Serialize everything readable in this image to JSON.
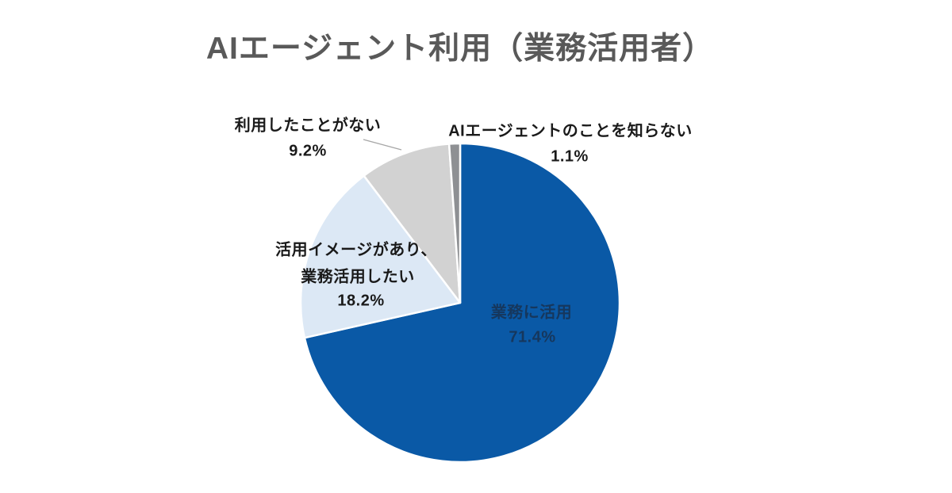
{
  "title": "AIエージェント利用（業務活用者）",
  "chart_data": {
    "type": "pie",
    "title": "AIエージェント利用（業務活用者）",
    "unit": "%",
    "start_angle_deg": 0,
    "direction": "clockwise",
    "legend": "none",
    "slice_border_color": "#ffffff",
    "slices": [
      {
        "label": "業務に活用",
        "value": 71.4,
        "color": "#0a59a6",
        "label_placement": "inside"
      },
      {
        "label": "活用イメージがあり、業務活用したい",
        "value": 18.2,
        "color": "#dce8f5",
        "label_placement": "outside"
      },
      {
        "label": "利用したことがない",
        "value": 9.2,
        "color": "#d2d2d2",
        "label_placement": "outside",
        "leader_line": true
      },
      {
        "label": "AIエージェントのことを知らない",
        "value": 1.1,
        "color": "#8e9093",
        "label_placement": "outside"
      }
    ]
  },
  "callouts": {
    "in_use": {
      "line1": "業務に活用",
      "line2": "71.4%"
    },
    "want_to_use": {
      "line1": "活用イメージがあり、",
      "line2": "業務活用したい",
      "line3": "18.2%"
    },
    "never_used": {
      "line1": "利用したことがない",
      "line2": "9.2%"
    },
    "unknown": {
      "line1": "AIエージェントのことを知らない",
      "line2": "1.1%"
    }
  },
  "colors": {
    "background": "#ffffff",
    "title_text": "#595959",
    "outside_label_text": "#1a1a1a",
    "inside_label_text": "#16375d",
    "leader_line": "#a6a6a6",
    "slice_blue": "#0a59a6",
    "slice_light_blue": "#dce8f5",
    "slice_light_gray": "#d2d2d2",
    "slice_dark_gray": "#8e9093"
  }
}
